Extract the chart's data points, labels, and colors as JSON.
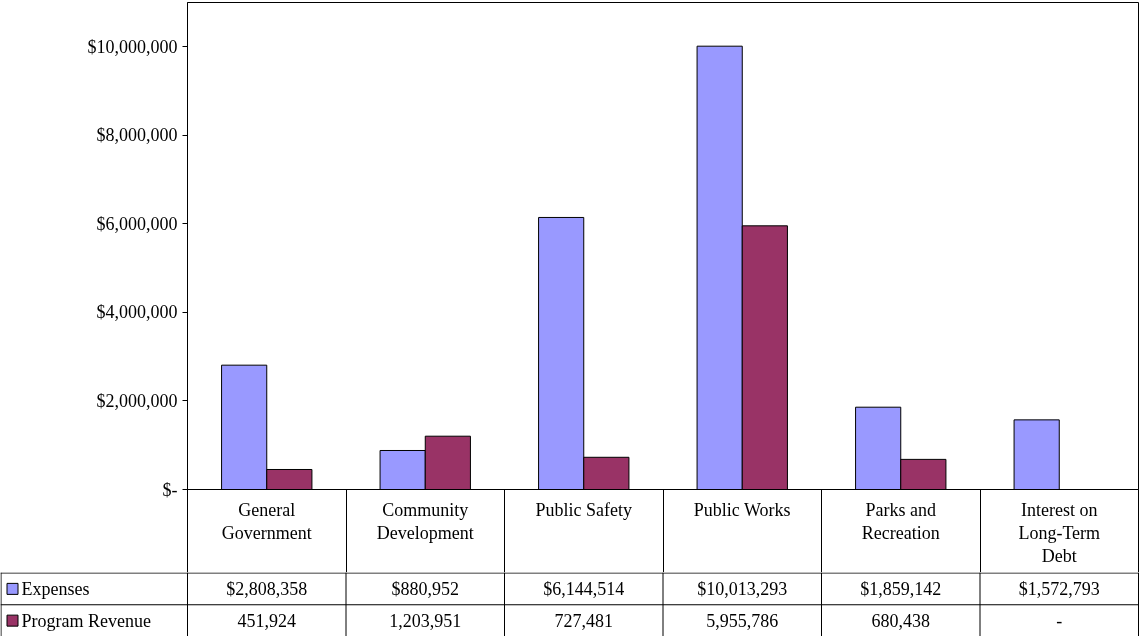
{
  "chart_data": {
    "type": "bar",
    "categories": [
      "General Government",
      "Community Development",
      "Public Safety",
      "Public Works",
      "Parks and Recreation",
      "Interest on Long-Term Debt"
    ],
    "series": [
      {
        "name": "Expenses",
        "color": "#9999ff",
        "values": [
          2808358,
          880952,
          6144514,
          10013293,
          1859142,
          1572793
        ],
        "value_labels": [
          "$2,808,358",
          "$880,952",
          "$6,144,514",
          "$10,013,293",
          "$1,859,142",
          "$1,572,793"
        ]
      },
      {
        "name": "Program Revenue",
        "color": "#993366",
        "values": [
          451924,
          1203951,
          727481,
          5955786,
          680438,
          null
        ],
        "value_labels": [
          "451,924",
          "1,203,951",
          "727,481",
          "5,955,786",
          "680,438",
          "-"
        ]
      }
    ],
    "ylim": [
      0,
      11000000
    ],
    "yticks": [
      {
        "value": 0,
        "label": "$-"
      },
      {
        "value": 2000000,
        "label": "$2,000,000"
      },
      {
        "value": 4000000,
        "label": "$4,000,000"
      },
      {
        "value": 6000000,
        "label": "$6,000,000"
      },
      {
        "value": 8000000,
        "label": "$8,000,000"
      },
      {
        "value": 10000000,
        "label": "$10,000,000"
      }
    ],
    "legend": "bottom left"
  }
}
